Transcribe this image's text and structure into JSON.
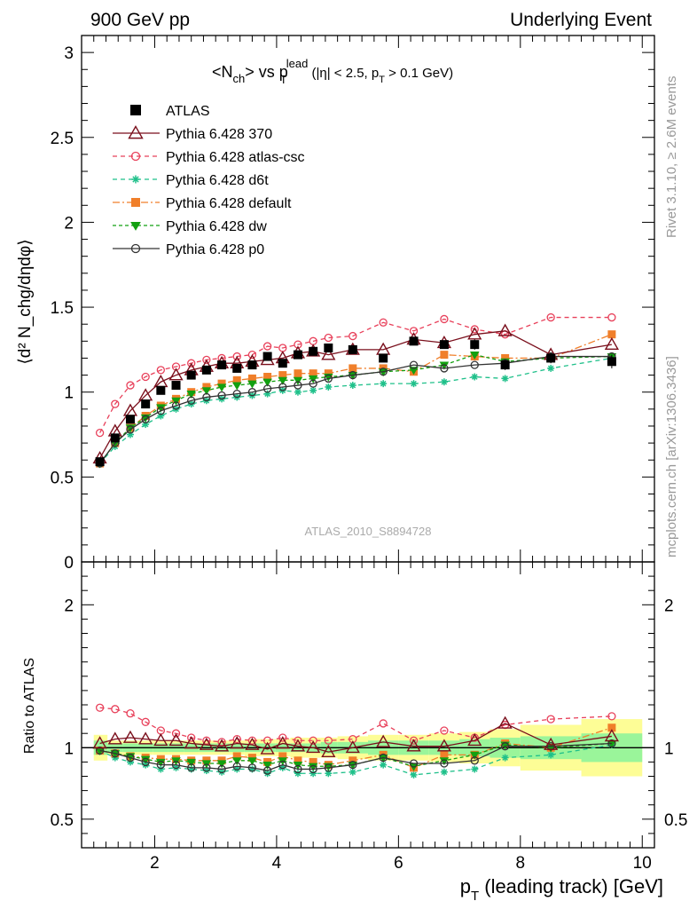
{
  "header": {
    "left": "900 GeV pp",
    "right": "Underlying Event"
  },
  "side_labels": {
    "rivet": "Rivet 3.1.10, ≥ 2.6M events",
    "mcplots": "mcplots.cern.ch [arXiv:1306.3436]"
  },
  "watermark": "ATLAS_2010_S8894728",
  "colors": {
    "ATLAS": "#000000",
    "370": "#7a0f1c",
    "atlas_csc": "#e8405a",
    "d6t": "#1fc08a",
    "default": "#f07f2a",
    "dw": "#12a010",
    "p0": "#333333",
    "band_green": "#9af59a",
    "band_yellow": "#fdfd96"
  },
  "chart_data": [
    {
      "type": "line",
      "title_parts": {
        "a": "<N",
        "b": "ch",
        "c": "> vs p",
        "d": "T",
        "e": "lead",
        "f": " (|η| < 2.5, p",
        "g": "T",
        "h": " > 0.1 GeV)"
      },
      "ylabel": "⟨d² N_chg/dηdφ⟩",
      "xlim": [
        0.8,
        10.2
      ],
      "ylim": [
        0,
        3.1
      ],
      "yticks": [
        "0",
        "0.5",
        "1",
        "1.5",
        "2",
        "2.5",
        "3"
      ],
      "x": [
        1.1,
        1.35,
        1.6,
        1.85,
        2.1,
        2.35,
        2.6,
        2.85,
        3.1,
        3.35,
        3.6,
        3.85,
        4.1,
        4.35,
        4.6,
        4.85,
        5.25,
        5.75,
        6.25,
        6.75,
        7.25,
        7.75,
        8.5,
        9.5
      ],
      "series": [
        {
          "key": "ATLAS",
          "name": "ATLAS",
          "values": [
            0.59,
            0.73,
            0.84,
            0.93,
            1.01,
            1.04,
            1.1,
            1.13,
            1.16,
            1.14,
            1.16,
            1.21,
            1.17,
            1.22,
            1.24,
            1.26,
            1.25,
            1.2,
            1.3,
            1.28,
            1.28,
            1.16,
            1.2,
            1.18
          ],
          "errors": [
            0.01,
            0.01,
            0.01,
            0.01,
            0.01,
            0.01,
            0.01,
            0.01,
            0.01,
            0.01,
            0.01,
            0.01,
            0.01,
            0.01,
            0.01,
            0.01,
            0.02,
            0.02,
            0.02,
            0.02,
            0.03,
            0.03,
            0.03,
            0.04
          ]
        },
        {
          "key": "370",
          "name": "Pythia 6.428 370",
          "values": [
            0.61,
            0.77,
            0.89,
            0.98,
            1.06,
            1.1,
            1.13,
            1.15,
            1.17,
            1.17,
            1.18,
            1.19,
            1.2,
            1.23,
            1.24,
            1.22,
            1.25,
            1.25,
            1.31,
            1.29,
            1.34,
            1.36,
            1.22,
            1.28
          ]
        },
        {
          "key": "atlas_csc",
          "name": "Pythia 6.428 atlas-csc",
          "values": [
            0.76,
            0.93,
            1.04,
            1.09,
            1.13,
            1.15,
            1.17,
            1.19,
            1.2,
            1.21,
            1.22,
            1.27,
            1.26,
            1.28,
            1.3,
            1.32,
            1.33,
            1.41,
            1.36,
            1.43,
            1.37,
            1.34,
            1.44,
            1.44
          ]
        },
        {
          "key": "d6t",
          "name": "Pythia 6.428 d6t",
          "values": [
            0.58,
            0.68,
            0.75,
            0.81,
            0.86,
            0.9,
            0.93,
            0.95,
            0.96,
            0.97,
            0.98,
            0.99,
            1.01,
            1.0,
            1.01,
            1.03,
            1.04,
            1.05,
            1.05,
            1.06,
            1.09,
            1.08,
            1.14,
            1.2
          ]
        },
        {
          "key": "default",
          "name": "Pythia 6.428 default",
          "values": [
            0.58,
            0.7,
            0.79,
            0.86,
            0.92,
            0.96,
            1.0,
            1.03,
            1.05,
            1.07,
            1.08,
            1.09,
            1.1,
            1.11,
            1.11,
            1.11,
            1.14,
            1.14,
            1.12,
            1.22,
            1.21,
            1.2,
            1.2,
            1.34
          ]
        },
        {
          "key": "dw",
          "name": "Pythia 6.428 dw",
          "values": [
            0.58,
            0.7,
            0.79,
            0.85,
            0.91,
            0.95,
            0.99,
            1.01,
            1.03,
            1.04,
            1.05,
            1.06,
            1.07,
            1.07,
            1.08,
            1.09,
            1.1,
            1.12,
            1.13,
            1.16,
            1.22,
            1.18,
            1.2,
            1.21
          ]
        },
        {
          "key": "p0",
          "name": "Pythia 6.428 p0",
          "values": [
            0.58,
            0.7,
            0.78,
            0.84,
            0.89,
            0.92,
            0.95,
            0.97,
            0.98,
            0.99,
            1.0,
            1.02,
            1.03,
            1.04,
            1.05,
            1.08,
            1.1,
            1.12,
            1.16,
            1.14,
            1.16,
            1.17,
            1.21,
            1.21
          ]
        }
      ],
      "legend": {
        "placement": "top-left"
      }
    },
    {
      "type": "line",
      "xlabel_parts": {
        "a": "p",
        "b": "T",
        "c": " (leading track) [GeV]"
      },
      "ylabel": "Ratio to ATLAS",
      "xlim": [
        0.8,
        10.2
      ],
      "ylim": [
        0.3,
        2.3
      ],
      "yticks": [
        "0.5",
        "1",
        "2"
      ],
      "xticks": [
        "2",
        "4",
        "6",
        "8",
        "10"
      ],
      "bands": {
        "edges": [
          1,
          1.225,
          1.475,
          1.725,
          1.975,
          2.225,
          2.475,
          2.725,
          2.975,
          3.225,
          3.475,
          3.725,
          3.975,
          4.225,
          4.475,
          4.725,
          5.0,
          5.5,
          6.0,
          6.5,
          7.0,
          7.5,
          8.0,
          9.0,
          10.0
        ],
        "inner": [
          0.05,
          0.03,
          0.03,
          0.03,
          0.03,
          0.03,
          0.03,
          0.03,
          0.03,
          0.03,
          0.03,
          0.03,
          0.03,
          0.03,
          0.03,
          0.04,
          0.04,
          0.05,
          0.05,
          0.05,
          0.06,
          0.07,
          0.08,
          0.1
        ],
        "outer": [
          0.09,
          0.05,
          0.05,
          0.05,
          0.05,
          0.05,
          0.05,
          0.05,
          0.05,
          0.05,
          0.06,
          0.06,
          0.06,
          0.07,
          0.07,
          0.07,
          0.08,
          0.09,
          0.09,
          0.1,
          0.11,
          0.13,
          0.16,
          0.2
        ]
      },
      "series": [
        {
          "key": "370",
          "name": "Pythia 6.428 370",
          "values": [
            1.03,
            1.06,
            1.07,
            1.06,
            1.05,
            1.05,
            1.03,
            1.02,
            1.01,
            1.03,
            1.02,
            0.99,
            1.03,
            1.01,
            1.0,
            0.97,
            1.0,
            1.04,
            1.01,
            1.01,
            1.05,
            1.17,
            1.02,
            1.08
          ]
        },
        {
          "key": "atlas_csc",
          "name": "Pythia 6.428 atlas-csc",
          "values": [
            1.28,
            1.27,
            1.24,
            1.18,
            1.12,
            1.1,
            1.07,
            1.05,
            1.04,
            1.06,
            1.05,
            1.05,
            1.07,
            1.05,
            1.05,
            1.05,
            1.06,
            1.17,
            1.05,
            1.12,
            1.07,
            1.16,
            1.2,
            1.22
          ]
        },
        {
          "key": "d6t",
          "name": "Pythia 6.428 d6t",
          "values": [
            0.98,
            0.93,
            0.9,
            0.88,
            0.85,
            0.86,
            0.85,
            0.84,
            0.83,
            0.85,
            0.85,
            0.82,
            0.86,
            0.82,
            0.82,
            0.82,
            0.83,
            0.88,
            0.81,
            0.83,
            0.85,
            0.93,
            0.95,
            1.02
          ]
        },
        {
          "key": "default",
          "name": "Pythia 6.428 default",
          "values": [
            0.98,
            0.96,
            0.94,
            0.93,
            0.92,
            0.92,
            0.91,
            0.91,
            0.91,
            0.94,
            0.93,
            0.9,
            0.94,
            0.91,
            0.9,
            0.88,
            0.91,
            0.95,
            0.86,
            0.95,
            0.95,
            1.03,
            1.0,
            1.14
          ]
        },
        {
          "key": "dw",
          "name": "Pythia 6.428 dw",
          "values": [
            0.98,
            0.96,
            0.94,
            0.92,
            0.9,
            0.91,
            0.9,
            0.89,
            0.89,
            0.91,
            0.91,
            0.88,
            0.91,
            0.88,
            0.87,
            0.87,
            0.88,
            0.93,
            0.87,
            0.91,
            0.95,
            1.02,
            1.0,
            1.03
          ]
        },
        {
          "key": "p0",
          "name": "Pythia 6.428 p0",
          "values": [
            0.98,
            0.96,
            0.93,
            0.9,
            0.88,
            0.88,
            0.86,
            0.86,
            0.85,
            0.87,
            0.86,
            0.84,
            0.88,
            0.85,
            0.85,
            0.86,
            0.88,
            0.93,
            0.89,
            0.89,
            0.91,
            1.01,
            1.01,
            1.03
          ]
        }
      ]
    }
  ]
}
